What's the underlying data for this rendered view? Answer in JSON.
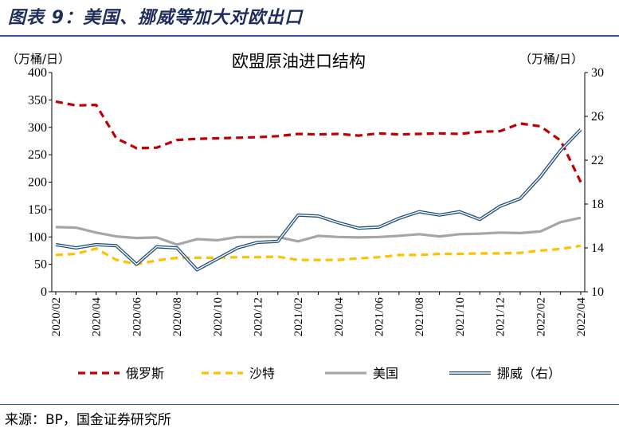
{
  "figure_title": "图表 9：美国、挪威等加大对欧出口",
  "source": "来源：BP，国金证券研究所",
  "chart_data": {
    "type": "line",
    "title": "欧盟原油进口结构",
    "y_left_unit": "（万桶/日）",
    "y_right_unit": "（万桶/日）",
    "y_left_lim": [
      0,
      400
    ],
    "y_left_ticks": [
      "0",
      "50",
      "100",
      "150",
      "200",
      "250",
      "300",
      "350",
      "400"
    ],
    "y_right_lim": [
      10,
      30
    ],
    "y_right_ticks": [
      "10",
      "14",
      "18",
      "22",
      "26",
      "30"
    ],
    "x_tick_labels": [
      "2020/02",
      "2020/04",
      "2020/06",
      "2020/08",
      "2020/10",
      "2020/12",
      "2021/02",
      "2021/04",
      "2021/06",
      "2021/08",
      "2021/10",
      "2021/12",
      "2022/02",
      "2022/04"
    ],
    "x": [
      "2020/02",
      "2020/03",
      "2020/04",
      "2020/05",
      "2020/06",
      "2020/07",
      "2020/08",
      "2020/09",
      "2020/10",
      "2020/11",
      "2020/12",
      "2021/01",
      "2021/02",
      "2021/03",
      "2021/04",
      "2021/05",
      "2021/06",
      "2021/07",
      "2021/08",
      "2021/09",
      "2021/10",
      "2021/11",
      "2021/12",
      "2022/01",
      "2022/02",
      "2022/03",
      "2022/04"
    ],
    "grid": false,
    "legend_position": "bottom",
    "series": [
      {
        "name": "俄罗斯",
        "axis": "left",
        "color": "#c00000",
        "style": "dashed",
        "values": [
          347,
          340,
          341,
          280,
          262,
          263,
          277,
          279,
          280,
          281,
          282,
          284,
          288,
          287,
          288,
          285,
          289,
          287,
          288,
          289,
          288,
          292,
          293,
          307,
          302,
          276,
          200
        ]
      },
      {
        "name": "沙特",
        "axis": "left",
        "color": "#ffc000",
        "style": "dashed",
        "values": [
          67,
          69,
          79,
          58,
          50,
          57,
          62,
          62,
          62,
          63,
          63,
          64,
          58,
          58,
          58,
          61,
          63,
          67,
          67,
          69,
          69,
          70,
          70,
          71,
          75,
          78,
          84
        ]
      },
      {
        "name": "美国",
        "axis": "left",
        "color": "#a6a6a6",
        "style": "solid",
        "values": [
          118,
          117,
          108,
          101,
          98,
          99,
          86,
          96,
          94,
          100,
          100,
          100,
          92,
          102,
          100,
          99,
          100,
          102,
          105,
          101,
          105,
          106,
          108,
          107,
          110,
          127,
          135
        ]
      },
      {
        "name": "挪威（右）",
        "axis": "right",
        "color": "#1f4e79",
        "style": "double",
        "values": [
          14.3,
          14.0,
          14.3,
          14.2,
          12.5,
          14.1,
          14.0,
          12.0,
          13.0,
          14.0,
          14.5,
          14.6,
          17.0,
          16.9,
          16.3,
          15.8,
          15.9,
          16.7,
          17.3,
          17.0,
          17.3,
          16.6,
          17.8,
          18.5,
          20.5,
          22.9,
          24.8
        ]
      }
    ]
  }
}
